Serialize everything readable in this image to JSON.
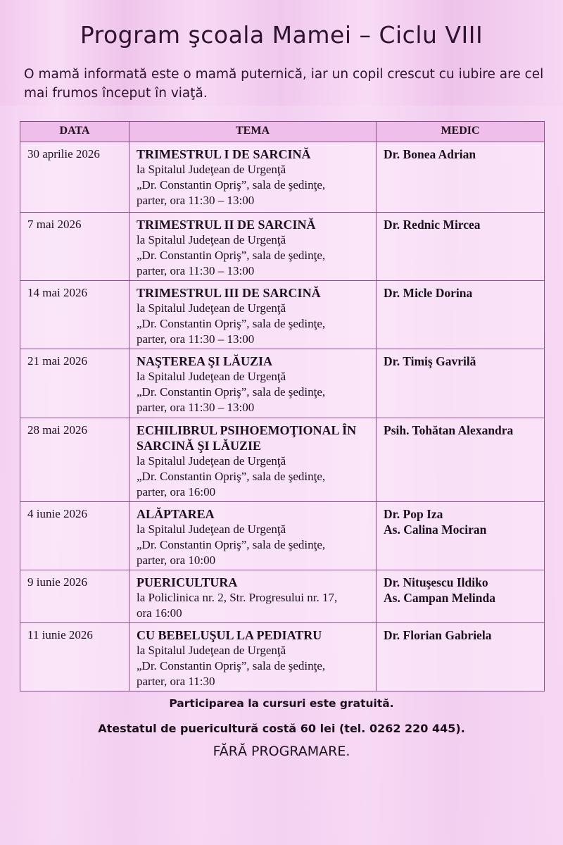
{
  "title": "Program şcoala Mamei – Ciclu VIII",
  "subtitle": "O mamă informată este o mamă puternică, iar un copil crescut cu iubire are cel mai frumos început în viaţă.",
  "table": {
    "headers": [
      "DATA",
      "TEMA",
      "MEDIC"
    ],
    "rows": [
      {
        "date": "30 aprilie 2026",
        "title": "TRIMESTRUL I DE SARCINĂ",
        "details": [
          "la Spitalul Judeţean de Urgenţă",
          "„Dr. Constantin Opriş”, sala de şedinţe,",
          "parter, ora 11:30 – 13:00"
        ],
        "medic": [
          "Dr. Bonea Adrian"
        ]
      },
      {
        "date": "7 mai 2026",
        "title": "TRIMESTRUL II DE SARCINĂ",
        "details": [
          "la Spitalul Judeţean de Urgenţă",
          "„Dr. Constantin Opriş”, sala de şedinţe,",
          "parter, ora 11:30 – 13:00"
        ],
        "medic": [
          "Dr. Rednic Mircea"
        ]
      },
      {
        "date": "14 mai 2026",
        "title": "TRIMESTRUL III DE SARCINĂ",
        "details": [
          "la Spitalul Judeţean de Urgenţă",
          "„Dr. Constantin Opriş”, sala de şedinţe,",
          "parter, ora 11:30 – 13:00"
        ],
        "medic": [
          "Dr. Micle Dorina"
        ]
      },
      {
        "date": "21 mai 2026",
        "title": "NAŞTEREA ŞI LĂUZIA",
        "details": [
          "la Spitalul Judeţean de Urgenţă",
          "„Dr. Constantin Opriş”, sala de şedinţe,",
          "parter, ora 11:30 – 13:00"
        ],
        "medic": [
          "Dr. Timiş Gavrilă"
        ]
      },
      {
        "date": "28 mai 2026",
        "title": "ECHILIBRUL PSIHOEMOŢIONAL ÎN SARCINĂ ŞI LĂUZIE",
        "details": [
          "la Spitalul Judeţean de Urgenţă",
          "„Dr. Constantin Opriş”, sala de şedinţe,",
          "parter, ora 16:00"
        ],
        "medic": [
          "Psih. Tohătan Alexandra"
        ]
      },
      {
        "date": "4 iunie 2026",
        "title": "ALĂPTAREA",
        "details": [
          "la Spitalul Judeţean de Urgenţă",
          "„Dr. Constantin Opriş”, sala de şedinţe,",
          "parter, ora 10:00"
        ],
        "medic": [
          "Dr. Pop Iza",
          "As. Calina Mociran"
        ]
      },
      {
        "date": "9 iunie 2026",
        "title": "PUERICULTURA",
        "details": [
          "la Policlinica nr. 2, Str. Progresului nr. 17,",
          "ora 16:00"
        ],
        "medic": [
          "Dr. Nituşescu Ildiko",
          "As. Campan Melinda"
        ]
      },
      {
        "date": "11 iunie 2026",
        "title": "CU BEBELUŞUL LA PEDIATRU",
        "details": [
          "la Spitalul Judeţean de Urgenţă",
          "„Dr. Constantin Opriş”, sala de şedinţe,",
          "parter, ora 11:30"
        ],
        "medic": [
          "Dr. Florian Gabriela"
        ]
      }
    ]
  },
  "footer": {
    "line1": "Participarea la cursuri este gratuită.",
    "line2": "Atestatul de puericultură costă 60 lei  (tel. 0262 220 445).",
    "line3": "FĂRĂ PROGRAMARE."
  },
  "colors": {
    "background": "#f3cdf0",
    "header_row": "#f0bfe9",
    "border": "#8a4d8a",
    "title": "#2e1330"
  }
}
